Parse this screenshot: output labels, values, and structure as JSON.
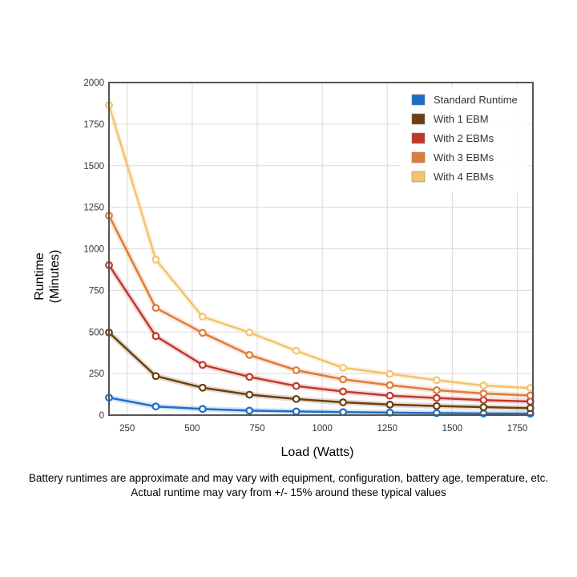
{
  "chart_data": {
    "type": "line",
    "title": "",
    "xlabel": "Load (Watts)",
    "ylabel_lines": [
      "Runtime",
      "(Minutes)"
    ],
    "xlim": [
      180,
      1810
    ],
    "ylim": [
      0,
      2000
    ],
    "xticks": [
      250,
      500,
      750,
      1000,
      1250,
      1500,
      1750
    ],
    "yticks": [
      0,
      250,
      500,
      750,
      1000,
      1250,
      1500,
      1750,
      2000
    ],
    "x": [
      180,
      360,
      540,
      720,
      900,
      1080,
      1260,
      1440,
      1620,
      1800
    ],
    "grid": true,
    "legend_position": "top-right",
    "series": [
      {
        "name": "Standard Runtime",
        "color": "#1a6fc9",
        "values": [
          105,
          52,
          37,
          27,
          22,
          18,
          15,
          12,
          10,
          9
        ]
      },
      {
        "name": "With 1 EBM",
        "color": "#6b3f12",
        "values": [
          497,
          235,
          165,
          123,
          97,
          77,
          63,
          55,
          48,
          42
        ]
      },
      {
        "name": "With 2 EBMs",
        "color": "#c0392b",
        "values": [
          902,
          475,
          302,
          230,
          175,
          142,
          117,
          103,
          90,
          82
        ]
      },
      {
        "name": "With 3 EBMs",
        "color": "#e07b39",
        "values": [
          1200,
          645,
          495,
          362,
          270,
          215,
          180,
          150,
          130,
          118
        ]
      },
      {
        "name": "With 4 EBMs",
        "color": "#f2c46b",
        "values": [
          1865,
          935,
          592,
          497,
          387,
          285,
          248,
          210,
          178,
          163
        ]
      }
    ]
  },
  "footnote": {
    "line1": "Battery runtimes are approximate and may vary with equipment, configuration, battery age, temperature, etc.",
    "line2": "Actual runtime may vary from +/- 15% around these typical values"
  }
}
